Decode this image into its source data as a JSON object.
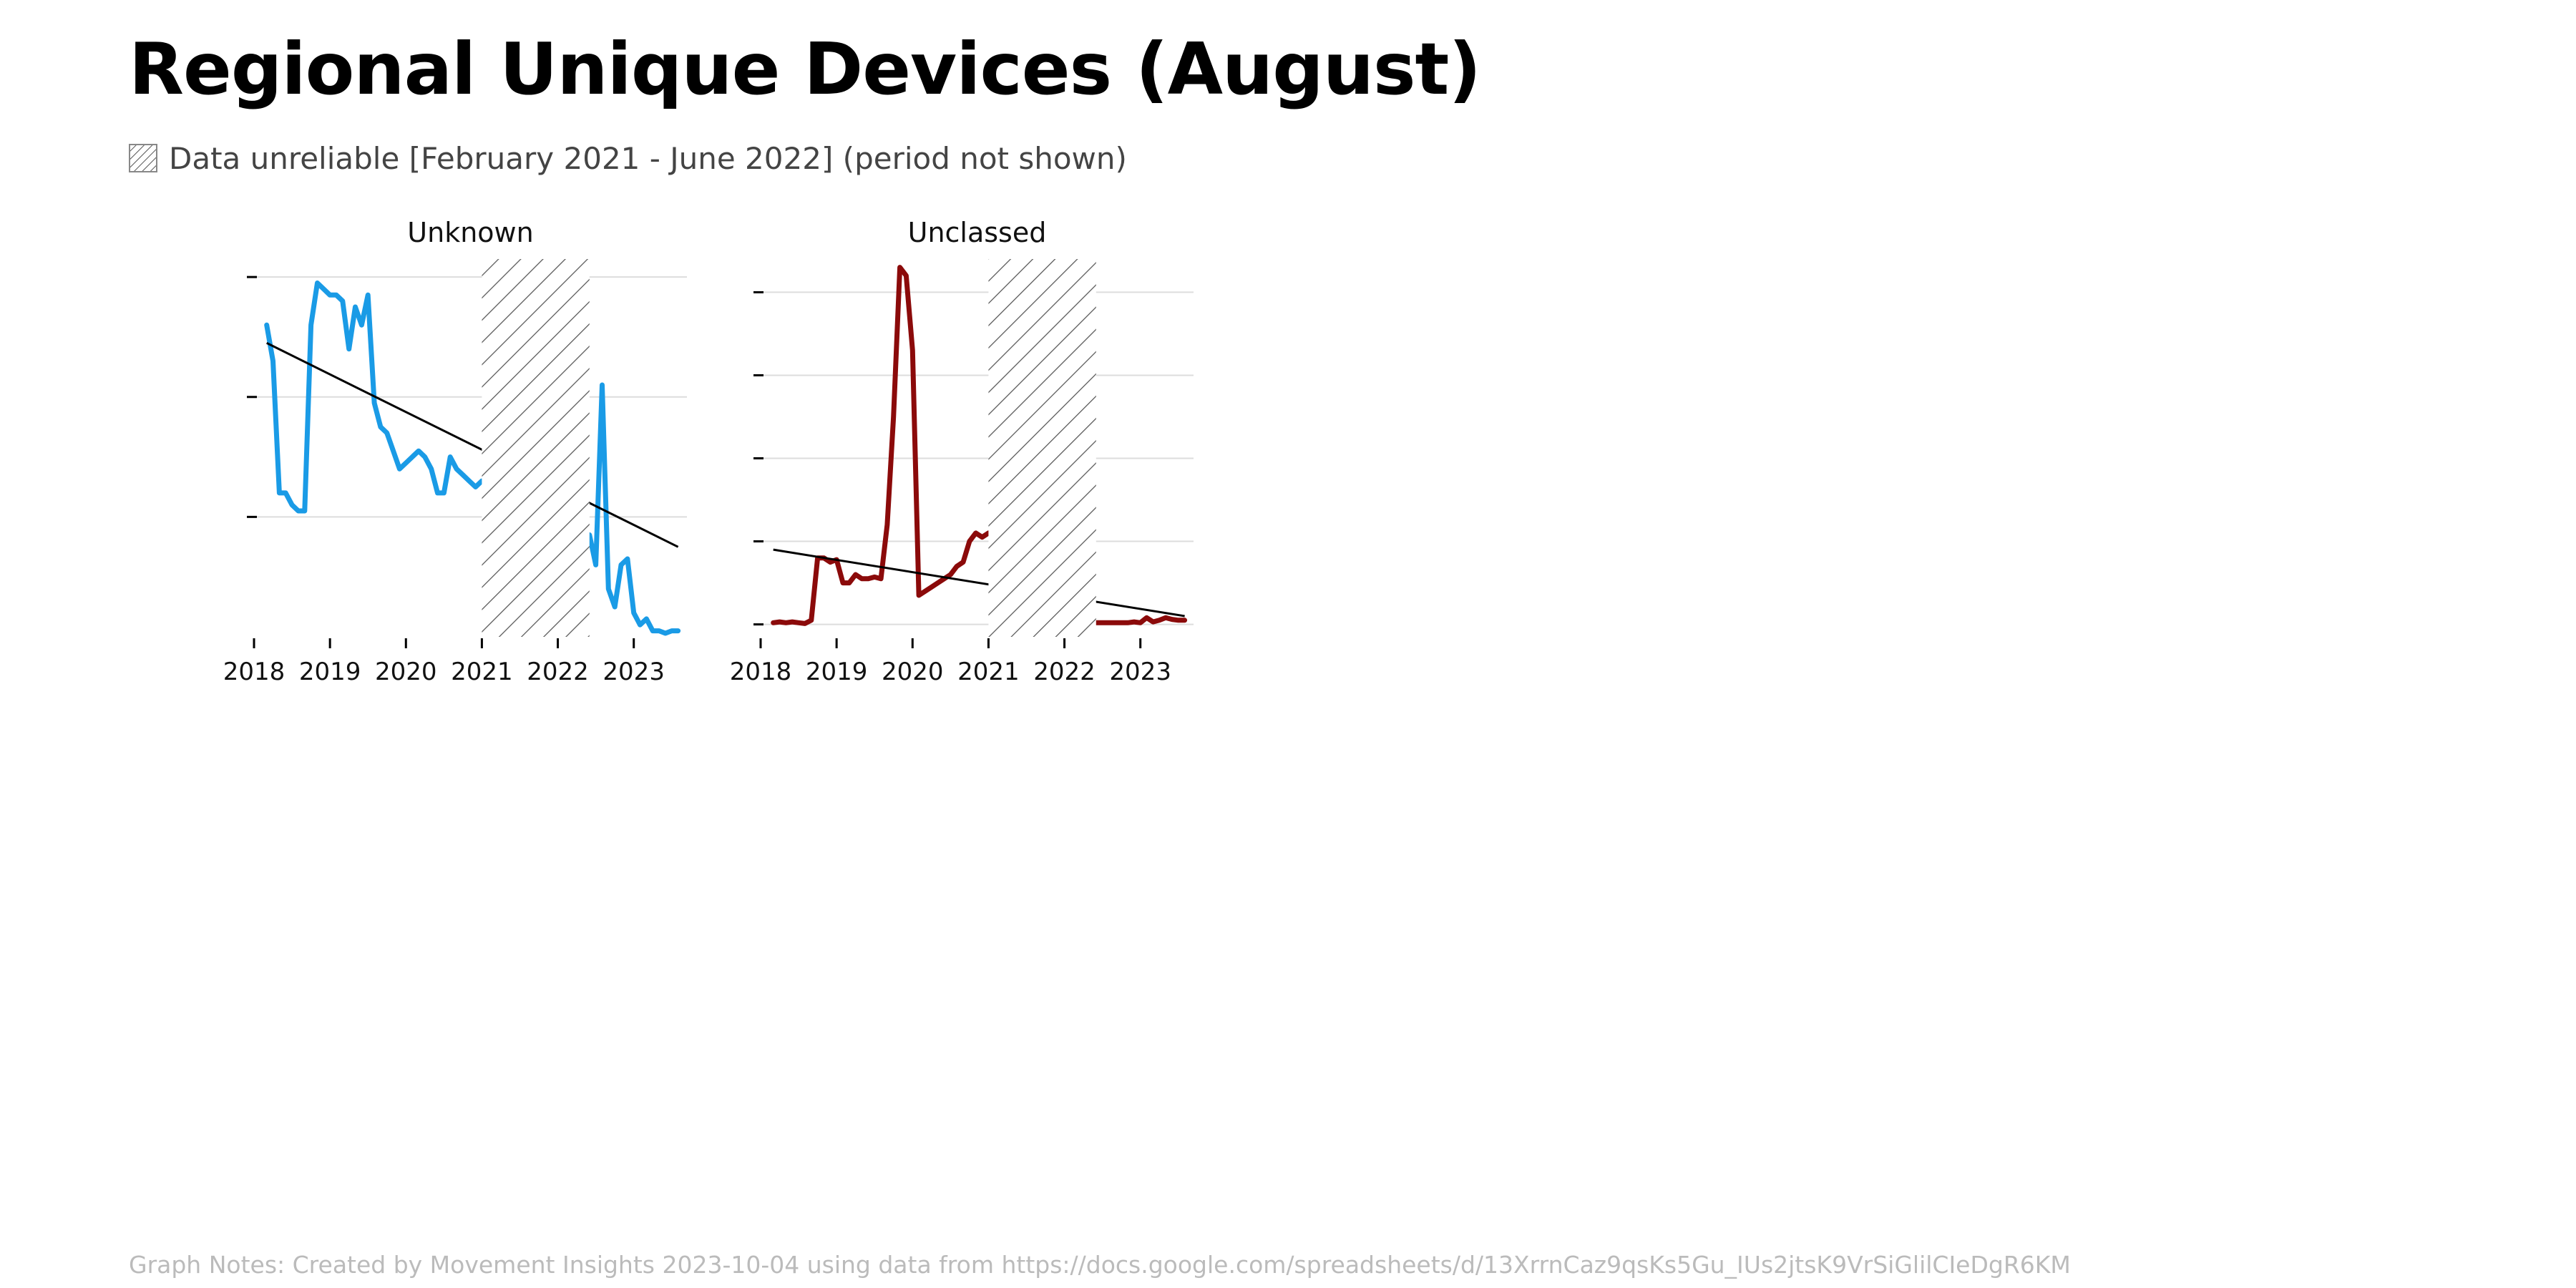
{
  "title": "Regional Unique Devices (August)",
  "legend": {
    "label": "Data unreliable [February 2021 - June 2022] (period not shown)",
    "pattern": "diagonal-hatch"
  },
  "notes": "Graph Notes: Created by Movement Insights 2023-10-04 using data from https://docs.google.com/spreadsheets/d/13XrrnCaz9qsKs5Gu_IUs2jtsK9VrSiGlilCIeDgR6KM",
  "colors": {
    "unknown": "#1a9be6",
    "unclassed": "#8b0a0a",
    "trend": "#000000",
    "grid": "#dddddd",
    "hatch": "#555555"
  },
  "chart_data": [
    {
      "type": "line",
      "title": "Unknown",
      "color": "#1a9be6",
      "xlabel": "",
      "ylabel": "",
      "x_ticks": [
        "2018",
        "2019",
        "2020",
        "2021",
        "2022",
        "2023"
      ],
      "x_range": [
        2018.0,
        2023.7
      ],
      "y_range": [
        0,
        3.15
      ],
      "y_ticks": [
        1,
        2,
        3
      ],
      "y_tick_labels_visible": false,
      "grid": "horizontal",
      "unreliable_period": [
        "2021-02",
        "2022-06"
      ],
      "series": [
        {
          "x": [
            "2018-03",
            "2018-04",
            "2018-05",
            "2018-06",
            "2018-07",
            "2018-08",
            "2018-09",
            "2018-10",
            "2018-11",
            "2018-12",
            "2019-01",
            "2019-02",
            "2019-03",
            "2019-04",
            "2019-05",
            "2019-06",
            "2019-07",
            "2019-08",
            "2019-09",
            "2019-10",
            "2019-11",
            "2019-12",
            "2020-01",
            "2020-02",
            "2020-03",
            "2020-04",
            "2020-05",
            "2020-06",
            "2020-07",
            "2020-08",
            "2020-09",
            "2020-10",
            "2020-11",
            "2020-12",
            "2021-01",
            "2022-06",
            "2022-07",
            "2022-08",
            "2022-09",
            "2022-10",
            "2022-11",
            "2022-12",
            "2023-01",
            "2023-02",
            "2023-03",
            "2023-04",
            "2023-05",
            "2023-06",
            "2023-07",
            "2023-08"
          ],
          "y": [
            2.6,
            2.3,
            1.2,
            1.2,
            1.1,
            1.05,
            1.05,
            2.6,
            2.95,
            2.9,
            2.85,
            2.85,
            2.8,
            2.4,
            2.75,
            2.6,
            2.85,
            1.95,
            1.75,
            1.7,
            1.55,
            1.4,
            1.45,
            1.5,
            1.55,
            1.5,
            1.4,
            1.2,
            1.2,
            1.5,
            1.4,
            1.35,
            1.3,
            1.25,
            1.3,
            0.85,
            0.6,
            2.1,
            0.4,
            0.25,
            0.6,
            0.65,
            0.2,
            0.1,
            0.15,
            0.05,
            0.05,
            0.03,
            0.05,
            0.05
          ]
        }
      ],
      "trendline": {
        "x": [
          "2018-03",
          "2023-08"
        ],
        "y": [
          2.45,
          0.75
        ]
      }
    },
    {
      "type": "line",
      "title": "Unclassed",
      "color": "#8b0a0a",
      "xlabel": "",
      "ylabel": "",
      "x_ticks": [
        "2018",
        "2019",
        "2020",
        "2021",
        "2022",
        "2023"
      ],
      "x_range": [
        2018.0,
        2023.7
      ],
      "y_range": [
        -0.15,
        4.4
      ],
      "y_ticks": [
        0,
        1,
        2,
        3,
        4
      ],
      "y_tick_labels_visible": false,
      "grid": "horizontal",
      "unreliable_period": [
        "2021-02",
        "2022-06"
      ],
      "series": [
        {
          "x": [
            "2018-03",
            "2018-04",
            "2018-05",
            "2018-06",
            "2018-07",
            "2018-08",
            "2018-09",
            "2018-10",
            "2018-11",
            "2018-12",
            "2019-01",
            "2019-02",
            "2019-03",
            "2019-04",
            "2019-05",
            "2019-06",
            "2019-07",
            "2019-08",
            "2019-09",
            "2019-10",
            "2019-11",
            "2019-12",
            "2020-01",
            "2020-02",
            "2020-03",
            "2020-04",
            "2020-05",
            "2020-06",
            "2020-07",
            "2020-08",
            "2020-09",
            "2020-10",
            "2020-11",
            "2020-12",
            "2021-01",
            "2022-06",
            "2022-07",
            "2022-08",
            "2022-09",
            "2022-10",
            "2022-11",
            "2022-12",
            "2023-01",
            "2023-02",
            "2023-03",
            "2023-04",
            "2023-05",
            "2023-06",
            "2023-07",
            "2023-08"
          ],
          "y": [
            0.02,
            0.03,
            0.02,
            0.03,
            0.02,
            0.01,
            0.05,
            0.8,
            0.8,
            0.75,
            0.78,
            0.5,
            0.5,
            0.6,
            0.55,
            0.55,
            0.57,
            0.55,
            1.2,
            2.5,
            4.3,
            4.2,
            3.3,
            0.35,
            0.4,
            0.45,
            0.5,
            0.55,
            0.6,
            0.7,
            0.75,
            1.0,
            1.1,
            1.05,
            1.1,
            0.02,
            0.02,
            0.02,
            0.02,
            0.02,
            0.02,
            0.03,
            0.02,
            0.08,
            0.03,
            0.05,
            0.08,
            0.06,
            0.05,
            0.05
          ]
        }
      ],
      "trendline": {
        "x": [
          "2018-03",
          "2023-08"
        ],
        "y": [
          0.9,
          0.1
        ]
      }
    }
  ]
}
